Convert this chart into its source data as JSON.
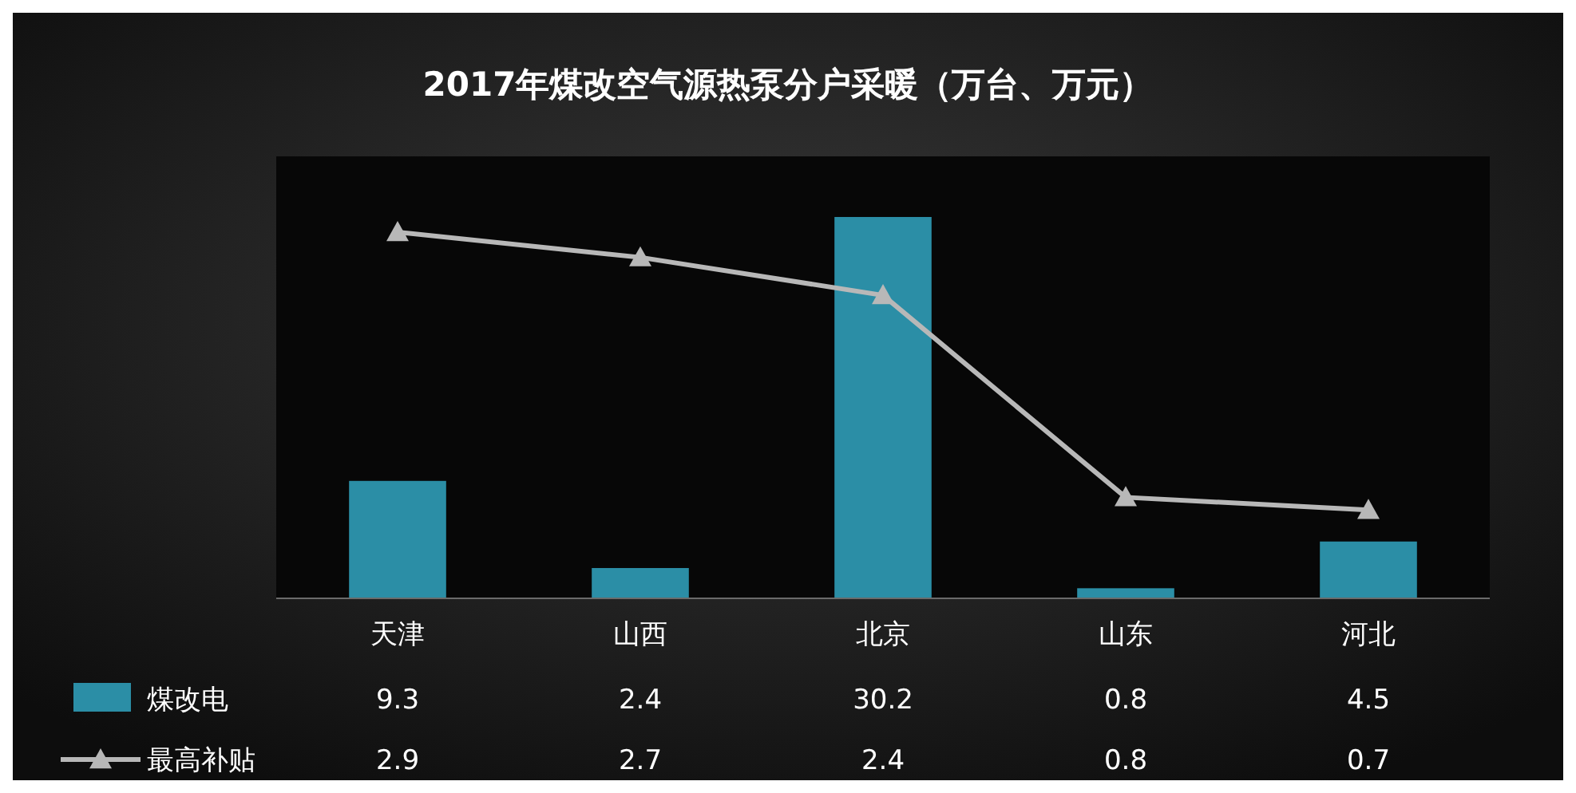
{
  "chart_data": {
    "type": "bar",
    "title": "2017年煤改空气源热泵分户采暖（万台、万元）",
    "categories": [
      "天津",
      "山西",
      "北京",
      "山东",
      "河北"
    ],
    "series": [
      {
        "name": "煤改电",
        "color": "#2b8ea6",
        "values": [
          9.3,
          2.4,
          30.2,
          0.8,
          4.5
        ]
      },
      {
        "name": "最高补贴",
        "type": "line",
        "axis": "y2",
        "color": "#b8b8b8",
        "values": [
          2.9,
          2.7,
          2.4,
          0.8,
          0.7
        ]
      }
    ],
    "ylim": [
      0,
      35
    ],
    "y2lim": [
      0,
      3.5
    ],
    "tick_labels": "x",
    "data_labels": true,
    "legend": "bottom left",
    "marker": "triangle",
    "line_style": "solid"
  }
}
